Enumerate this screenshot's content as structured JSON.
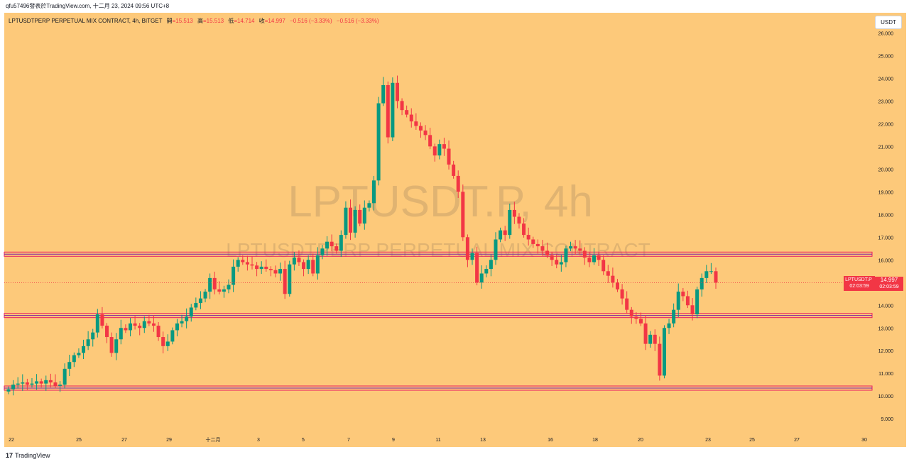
{
  "header": {
    "author_line": "qfu57496發表於TradingView.com, 十二月 23, 2024 09:56 UTC+8"
  },
  "legend": {
    "symbol": "LPTUSDTPERP PERPETUAL MIX CONTRACT, 4h, BITGET",
    "open_label": "開",
    "open": "=15.513",
    "high_label": "高",
    "high": "=15.513",
    "low_label": "低",
    "low": "=14.714",
    "close_label": "收",
    "close": "=14.997",
    "change": "−0.516 (−3.33%)",
    "change2": "−0.516 (−3.33%)"
  },
  "currency_button": "USDT",
  "watermark": {
    "big": "LPTUSDT.P, 4h",
    "small": "LPTUSDTPERP PERPETUAL MIX CONTRACT"
  },
  "last_price": {
    "symbol": "LPTUSDT.P",
    "price": "14.997",
    "countdown": "02:03:59"
  },
  "footer": {
    "logo_mark": "17",
    "brand": "TradingView"
  },
  "colors": {
    "background": "#fdc97a",
    "up": "#089981",
    "down": "#f23645",
    "level_outer": "#e91e63",
    "level_inner": "#7b1fa2"
  },
  "chart_data": {
    "type": "candlestick",
    "title": "LPTUSDTPERP PERPETUAL MIX CONTRACT, 4h, BITGET",
    "ylim": [
      8.6,
      26.2
    ],
    "y_ticks": [
      "9.000",
      "10.000",
      "11.000",
      "12.000",
      "13.000",
      "14.000",
      "15.000",
      "16.000",
      "17.000",
      "18.000",
      "19.000",
      "20.000",
      "21.000",
      "22.000",
      "23.000",
      "24.000",
      "25.000",
      "26.000"
    ],
    "x_ticks": [
      "22",
      "25",
      "27",
      "29",
      "十二月",
      "3",
      "5",
      "7",
      "9",
      "11",
      "13",
      "16",
      "18",
      "20",
      "23",
      "25",
      "27",
      "30"
    ],
    "horizontal_levels": [
      16.25,
      13.55,
      10.35
    ],
    "last_close": 14.997,
    "series_close": [
      10.3,
      10.5,
      10.55,
      10.6,
      10.5,
      10.55,
      10.65,
      10.55,
      10.7,
      10.6,
      10.45,
      10.5,
      11.2,
      11.5,
      11.8,
      11.9,
      12.2,
      12.5,
      12.8,
      13.6,
      13.1,
      12.6,
      11.9,
      12.5,
      13.0,
      12.9,
      13.2,
      13.1,
      13.0,
      13.3,
      13.2,
      13.1,
      12.6,
      12.2,
      12.4,
      12.9,
      13.2,
      13.3,
      13.5,
      13.9,
      14.1,
      14.3,
      14.6,
      15.2,
      14.7,
      14.6,
      14.7,
      14.9,
      15.7,
      16.0,
      15.9,
      15.8,
      15.75,
      15.6,
      15.7,
      15.6,
      15.55,
      15.4,
      15.6,
      14.5,
      15.8,
      16.1,
      15.9,
      15.6,
      16.0,
      15.4,
      16.2,
      16.5,
      16.8,
      16.6,
      16.4,
      17.1,
      18.3,
      17.2,
      18.2,
      17.6,
      18.3,
      18.5,
      19.5,
      22.9,
      23.7,
      21.4,
      23.8,
      23.0,
      22.6,
      22.4,
      22.1,
      21.9,
      21.7,
      21.5,
      21.0,
      20.6,
      21.1,
      20.9,
      20.2,
      19.7,
      19.0,
      17.0,
      16.0,
      16.3,
      15.0,
      15.4,
      15.6,
      16.0,
      16.9,
      17.3,
      17.1,
      18.2,
      17.9,
      17.6,
      17.1,
      16.9,
      16.7,
      16.6,
      16.4,
      16.2,
      16.0,
      15.8,
      15.9,
      16.5,
      16.6,
      16.5,
      16.4,
      16.1,
      15.9,
      16.2,
      16.0,
      15.5,
      15.3,
      15.0,
      14.7,
      14.3,
      13.8,
      13.5,
      13.4,
      13.2,
      12.3,
      12.7,
      12.3,
      10.9,
      13.0,
      13.2,
      13.8,
      14.6,
      14.4,
      14.0,
      13.6,
      14.7,
      15.2,
      15.5,
      15.5,
      14.997
    ]
  }
}
